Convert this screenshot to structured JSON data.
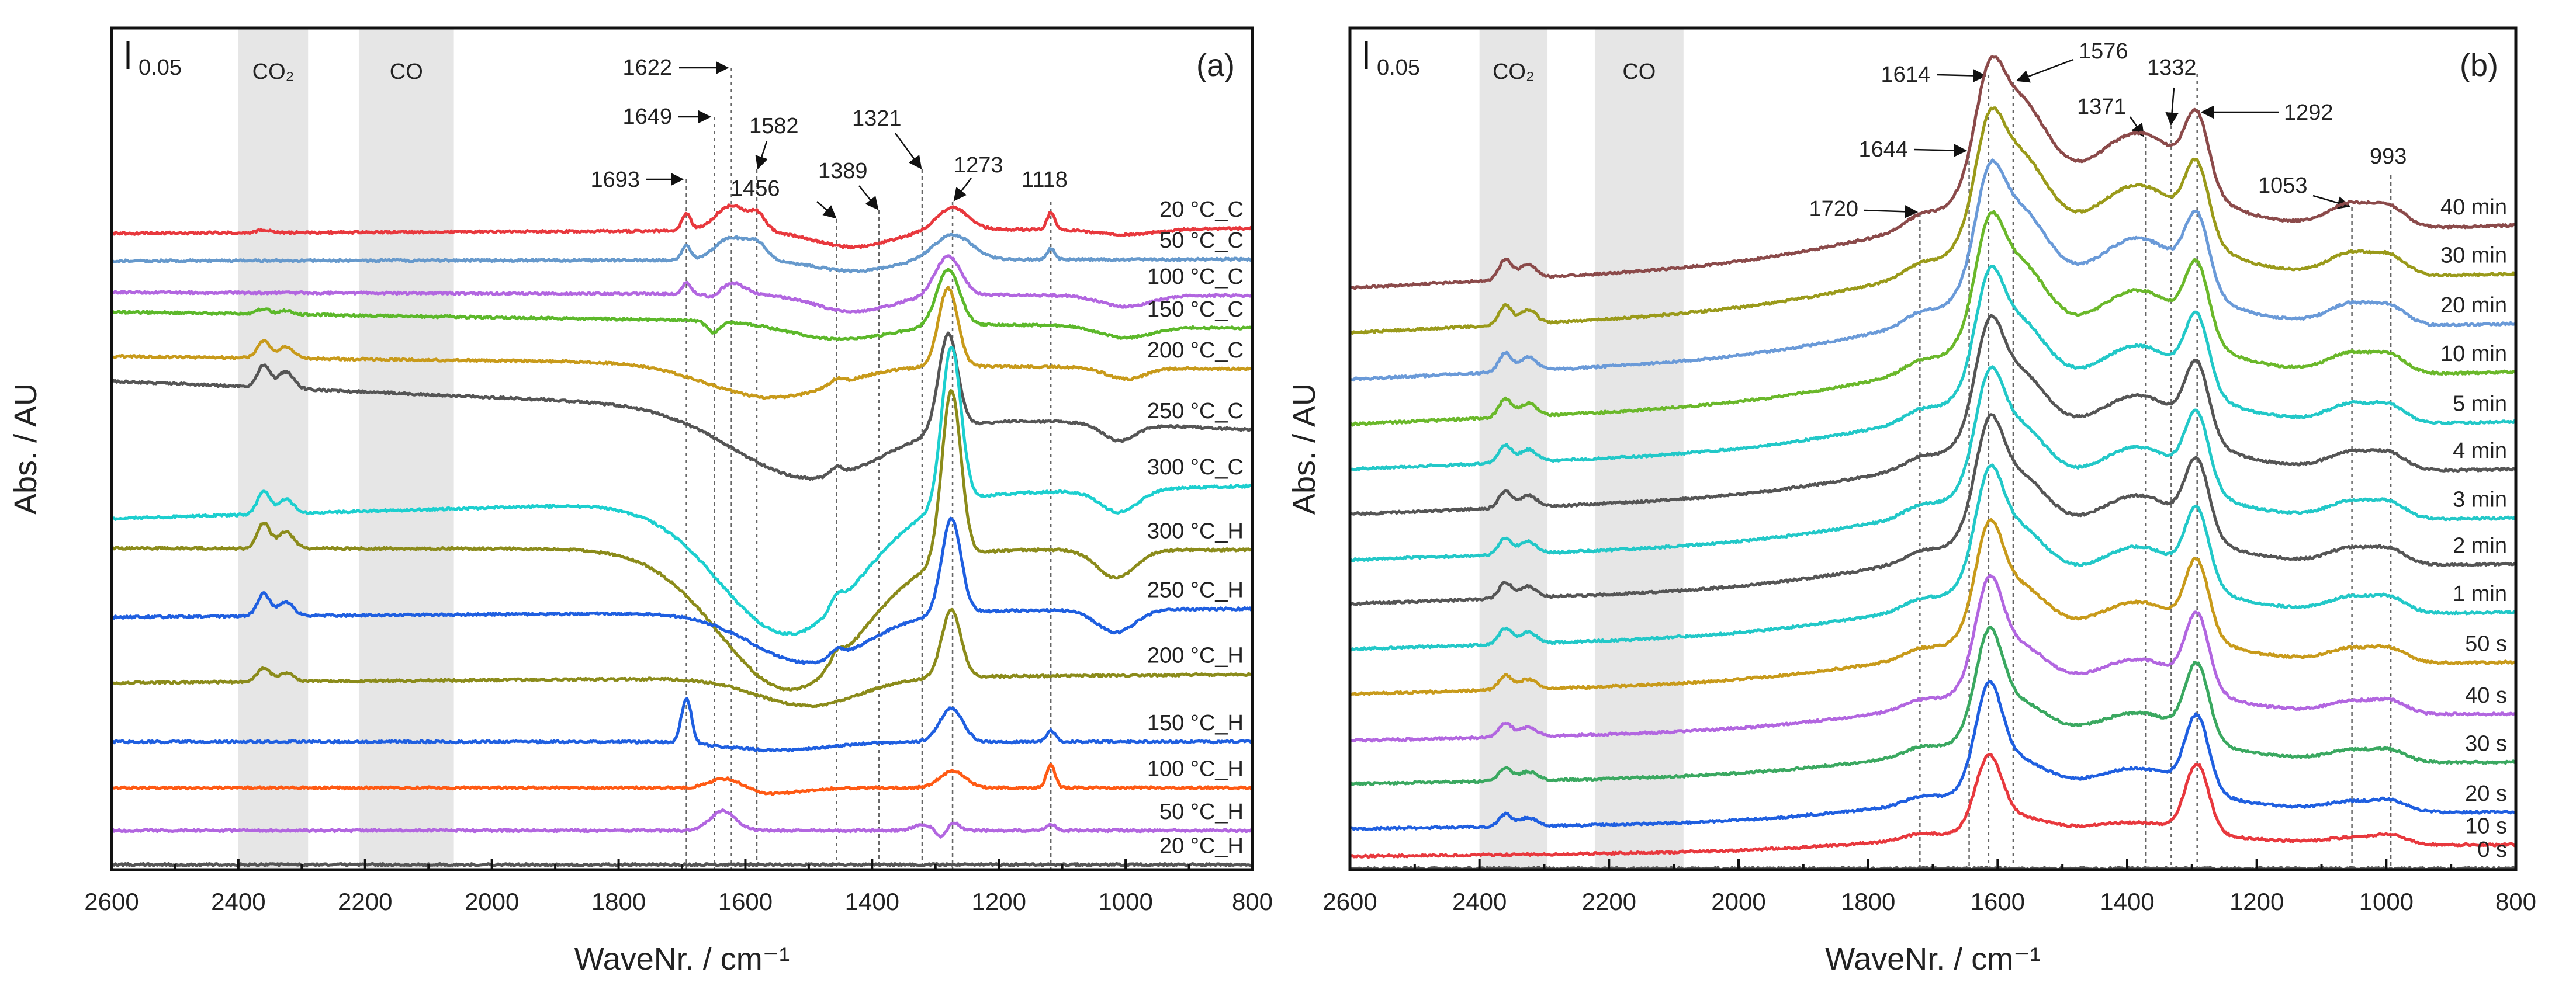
{
  "chart_data": [
    {
      "type": "line",
      "title": "(a)",
      "xlabel": "WaveNr. / cm⁻¹",
      "ylabel": "Abs. / AU",
      "xlim": [
        2600,
        800
      ],
      "ylim": [
        0,
        1.5
      ],
      "xticks": [
        "2600",
        "2400",
        "2200",
        "2000",
        "1800",
        "1600",
        "1400",
        "1200",
        "1000",
        "800"
      ],
      "scale_bar": "0.05",
      "shaded_regions": [
        {
          "label": "CO₂",
          "range": [
            2400,
            2290
          ]
        },
        {
          "label": "CO",
          "range": [
            2210,
            2060
          ]
        }
      ],
      "annotations": [
        {
          "label": "1693",
          "x": 1693
        },
        {
          "label": "1649",
          "x": 1649
        },
        {
          "label": "1622",
          "x": 1622
        },
        {
          "label": "1582",
          "x": 1582
        },
        {
          "label": "1456",
          "x": 1456
        },
        {
          "label": "1389",
          "x": 1389
        },
        {
          "label": "1321",
          "x": 1321
        },
        {
          "label": "1273",
          "x": 1273
        },
        {
          "label": "1118",
          "x": 1118
        }
      ],
      "series": [
        {
          "name": "20 °C_C",
          "color": "#e8383d",
          "left": 1.134,
          "right": 1.143,
          "peaks": [
            [
              2360,
              0.005,
              10
            ],
            [
              1693,
              0.03,
              7
            ],
            [
              1622,
              0.045,
              25
            ],
            [
              1580,
              0.025,
              12
            ],
            [
              1430,
              -0.03,
              60
            ],
            [
              1273,
              0.04,
              25
            ],
            [
              1118,
              0.03,
              6
            ],
            [
              1000,
              -0.01,
              50
            ]
          ]
        },
        {
          "name": "50 °C_C",
          "color": "#6699cc",
          "left": 1.085,
          "right": 1.088,
          "peaks": [
            [
              1693,
              0.025,
              7
            ],
            [
              1622,
              0.04,
              25
            ],
            [
              1580,
              0.025,
              15
            ],
            [
              1430,
              -0.02,
              60
            ],
            [
              1273,
              0.045,
              30
            ],
            [
              1118,
              0.02,
              6
            ]
          ]
        },
        {
          "name": "100 °C_C",
          "color": "#b266e0",
          "left": 1.029,
          "right": 1.023,
          "peaks": [
            [
              1693,
              0.02,
              7
            ],
            [
              1650,
              -0.01,
              10
            ],
            [
              1620,
              0.02,
              20
            ],
            [
              1430,
              -0.03,
              60
            ],
            [
              1280,
              0.07,
              20
            ],
            [
              1000,
              -0.02,
              40
            ]
          ]
        },
        {
          "name": "150 °C_C",
          "color": "#5cb82a",
          "left": 0.994,
          "right": 0.965,
          "peaks": [
            [
              2360,
              0.01,
              10
            ],
            [
              2325,
              0.007,
              10
            ],
            [
              1650,
              -0.02,
              10
            ],
            [
              1450,
              -0.03,
              80
            ],
            [
              1280,
              0.1,
              18
            ],
            [
              1000,
              -0.02,
              40
            ]
          ]
        },
        {
          "name": "200 °C_C",
          "color": "#c89a1a",
          "left": 0.915,
          "right": 0.892,
          "peaks": [
            [
              2360,
              0.03,
              10
            ],
            [
              2325,
              0.02,
              12
            ],
            [
              1560,
              -0.06,
              100
            ],
            [
              1456,
              0.01,
              10
            ],
            [
              1280,
              0.14,
              15
            ],
            [
              1000,
              -0.02,
              30
            ]
          ]
        },
        {
          "name": "250 °C_C",
          "color": "#555555",
          "left": 0.871,
          "right": 0.784,
          "peaks": [
            [
              2360,
              0.04,
              10
            ],
            [
              2325,
              0.03,
              12
            ],
            [
              1500,
              -0.12,
              120
            ],
            [
              1456,
              0.015,
              10
            ],
            [
              1280,
              0.17,
              15
            ],
            [
              1010,
              -0.03,
              25
            ]
          ]
        },
        {
          "name": "300 °C_C",
          "color": "#1ccfcf",
          "left": 0.626,
          "right": 0.684,
          "peaks": [
            [
              2360,
              0.04,
              10
            ],
            [
              2325,
              0.025,
              12
            ],
            [
              1530,
              -0.24,
              110
            ],
            [
              1456,
              0.02,
              10
            ],
            [
              1275,
              0.28,
              15
            ],
            [
              1010,
              -0.04,
              30
            ]
          ]
        },
        {
          "name": "300 °C_H",
          "color": "#8b8b1a",
          "left": 0.573,
          "right": 0.57,
          "peaks": [
            [
              2360,
              0.045,
              10
            ],
            [
              2325,
              0.03,
              12
            ],
            [
              1530,
              -0.25,
              110
            ],
            [
              1456,
              0.02,
              10
            ],
            [
              1275,
              0.3,
              15
            ],
            [
              1015,
              -0.05,
              30
            ]
          ]
        },
        {
          "name": "250 °C_H",
          "color": "#1f5fe0",
          "left": 0.45,
          "right": 0.465,
          "peaks": [
            [
              2360,
              0.04,
              10
            ],
            [
              2325,
              0.025,
              12
            ],
            [
              1500,
              -0.09,
              90
            ],
            [
              1456,
              0.015,
              10
            ],
            [
              1275,
              0.17,
              15
            ],
            [
              1015,
              -0.04,
              30
            ]
          ]
        },
        {
          "name": "200 °C_H",
          "color": "#8b8b1a",
          "left": 0.333,
          "right": 0.348,
          "peaks": [
            [
              2360,
              0.025,
              10
            ],
            [
              2325,
              0.015,
              12
            ],
            [
              1500,
              -0.05,
              80
            ],
            [
              1275,
              0.12,
              15
            ]
          ]
        },
        {
          "name": "150 °C_H",
          "color": "#1f5fe0",
          "left": 0.228,
          "right": 0.228,
          "peaks": [
            [
              1693,
              0.08,
              8
            ],
            [
              1550,
              -0.015,
              80
            ],
            [
              1275,
              0.06,
              18
            ],
            [
              1118,
              0.02,
              7
            ]
          ]
        },
        {
          "name": "100 °C_H",
          "color": "#ff5a14",
          "left": 0.146,
          "right": 0.146,
          "peaks": [
            [
              1630,
              0.02,
              25
            ],
            [
              1560,
              -0.01,
              50
            ],
            [
              1273,
              0.03,
              20
            ],
            [
              1118,
              0.04,
              7
            ]
          ]
        },
        {
          "name": "50 °C_H",
          "color": "#b266e0",
          "left": 0.07,
          "right": 0.07,
          "peaks": [
            [
              1635,
              0.035,
              20
            ],
            [
              1320,
              0.01,
              15
            ],
            [
              1290,
              -0.015,
              8
            ],
            [
              1273,
              0.015,
              10
            ],
            [
              1118,
              0.012,
              7
            ]
          ]
        },
        {
          "name": "20 °C_H",
          "color": "#555555",
          "left": 0.009,
          "right": 0.009,
          "peaks": []
        }
      ]
    },
    {
      "type": "line",
      "title": "(b)",
      "xlabel": "WaveNr. / cm⁻¹",
      "ylabel": "Abs. / AU",
      "xlim": [
        2600,
        800
      ],
      "ylim": [
        0,
        1.5
      ],
      "xticks": [
        "2600",
        "2400",
        "2200",
        "2000",
        "1800",
        "1600",
        "1400",
        "1200",
        "1000",
        "800"
      ],
      "scale_bar": "0.05",
      "shaded_regions": [
        {
          "label": "CO₂",
          "range": [
            2400,
            2295
          ]
        },
        {
          "label": "CO",
          "range": [
            2222,
            2085
          ]
        }
      ],
      "annotations": [
        {
          "label": "1720",
          "x": 1720
        },
        {
          "label": "1644",
          "x": 1644
        },
        {
          "label": "1614",
          "x": 1614
        },
        {
          "label": "1576",
          "x": 1576
        },
        {
          "label": "1371",
          "x": 1371
        },
        {
          "label": "1332",
          "x": 1332
        },
        {
          "label": "1292",
          "x": 1292
        },
        {
          "label": "1053",
          "x": 1053
        },
        {
          "label": "993",
          "x": 993
        }
      ],
      "components": [
        [
          2360,
          10
        ],
        [
          2325,
          13
        ],
        [
          1720,
          25
        ],
        [
          1614,
          20
        ],
        [
          1576,
          50
        ],
        [
          1380,
          70
        ],
        [
          1292,
          18
        ],
        [
          1053,
          35
        ],
        [
          993,
          25
        ],
        [
          1500,
          250
        ]
      ],
      "series": [
        {
          "name": "40 min",
          "color": "#8b4a4a",
          "left": 1.037,
          "right": 1.147,
          "weights": [
            0.035,
            0.025,
            0.02,
            0.12,
            0.2,
            0.13,
            0.12,
            0.04,
            0.03,
            0.08
          ]
        },
        {
          "name": "30 min",
          "color": "#9a9a1a",
          "left": 0.957,
          "right": 1.061,
          "weights": [
            0.034,
            0.024,
            0.019,
            0.123,
            0.19,
            0.124,
            0.121,
            0.038,
            0.029,
            0.077
          ]
        },
        {
          "name": "20 min",
          "color": "#6a9ad8",
          "left": 0.874,
          "right": 0.972,
          "weights": [
            0.033,
            0.024,
            0.019,
            0.125,
            0.18,
            0.118,
            0.121,
            0.036,
            0.028,
            0.075
          ]
        },
        {
          "name": "10 min",
          "color": "#6ab82a",
          "left": 0.794,
          "right": 0.886,
          "weights": [
            0.032,
            0.023,
            0.018,
            0.128,
            0.17,
            0.112,
            0.122,
            0.034,
            0.027,
            0.072
          ]
        },
        {
          "name": "5 min",
          "color": "#22c8c8",
          "left": 0.714,
          "right": 0.797,
          "weights": [
            0.031,
            0.022,
            0.018,
            0.132,
            0.155,
            0.103,
            0.123,
            0.032,
            0.026,
            0.068
          ]
        },
        {
          "name": "4 min",
          "color": "#555555",
          "left": 0.634,
          "right": 0.713,
          "weights": [
            0.03,
            0.021,
            0.017,
            0.134,
            0.148,
            0.099,
            0.124,
            0.03,
            0.025,
            0.066
          ]
        },
        {
          "name": "3 min",
          "color": "#22c8c8",
          "left": 0.552,
          "right": 0.626,
          "weights": [
            0.029,
            0.021,
            0.017,
            0.136,
            0.14,
            0.094,
            0.124,
            0.029,
            0.024,
            0.064
          ]
        },
        {
          "name": "2 min",
          "color": "#555555",
          "left": 0.474,
          "right": 0.544,
          "weights": [
            0.028,
            0.02,
            0.016,
            0.138,
            0.133,
            0.09,
            0.125,
            0.027,
            0.023,
            0.062
          ]
        },
        {
          "name": "1 min",
          "color": "#22c8c8",
          "left": 0.393,
          "right": 0.458,
          "weights": [
            0.028,
            0.02,
            0.016,
            0.14,
            0.125,
            0.085,
            0.125,
            0.026,
            0.023,
            0.06
          ]
        },
        {
          "name": "50 s",
          "color": "#c89a1a",
          "left": 0.313,
          "right": 0.369,
          "weights": [
            0.026,
            0.018,
            0.015,
            0.144,
            0.11,
            0.076,
            0.126,
            0.023,
            0.021,
            0.056
          ]
        },
        {
          "name": "40 s",
          "color": "#b266e0",
          "left": 0.23,
          "right": 0.277,
          "weights": [
            0.025,
            0.017,
            0.014,
            0.148,
            0.095,
            0.067,
            0.127,
            0.02,
            0.02,
            0.052
          ]
        },
        {
          "name": "30 s",
          "color": "#3aa860",
          "left": 0.153,
          "right": 0.191,
          "weights": [
            0.023,
            0.016,
            0.014,
            0.152,
            0.08,
            0.058,
            0.128,
            0.018,
            0.018,
            0.048
          ]
        },
        {
          "name": "20 s",
          "color": "#1f5fe0",
          "left": 0.073,
          "right": 0.102,
          "weights": [
            0.022,
            0.015,
            0.013,
            0.156,
            0.065,
            0.049,
            0.129,
            0.015,
            0.017,
            0.044
          ]
        },
        {
          "name": "10 s",
          "color": "#e8383d",
          "left": 0.024,
          "right": 0.044,
          "weights": [
            0,
            0,
            0.01,
            0.12,
            0.03,
            0.02,
            0.12,
            0.01,
            0.015,
            0.03
          ]
        },
        {
          "name": "0 s",
          "color": "#555555",
          "left": 0.002,
          "right": 0.002,
          "weights": [
            0,
            0,
            0,
            0,
            0,
            0,
            0,
            0,
            0,
            0
          ]
        }
      ]
    }
  ]
}
